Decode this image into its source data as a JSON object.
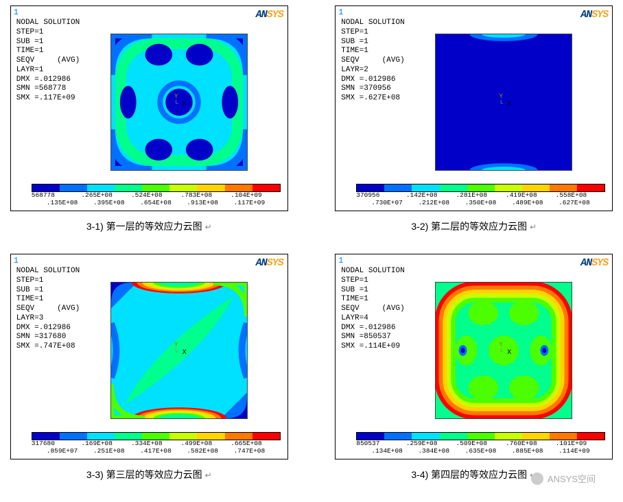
{
  "contour_colors": [
    "#0000c8",
    "#0070ff",
    "#00e0ff",
    "#00ff8c",
    "#4cff00",
    "#c8ff00",
    "#ffd400",
    "#ff7800",
    "#ff0000"
  ],
  "panels": [
    {
      "id": "p1",
      "corner": "1",
      "title": "NODAL SOLUTION",
      "lines": [
        "STEP=1",
        "SUB =1",
        "TIME=1",
        "SEQV     (AVG)",
        "LAYR=1",
        "DMX =.012986",
        "SMN =568778",
        "SMX =.117E+09"
      ],
      "legend_top": [
        "568778",
        ".265E+08",
        ".524E+08",
        ".783E+08",
        ".104E+09"
      ],
      "legend_bot": [
        ".135E+08",
        ".395E+08",
        ".654E+08",
        ".913E+08",
        ".117E+09"
      ],
      "caption": "3-1)  第一层的等效应力云图",
      "plot": 1
    },
    {
      "id": "p2",
      "corner": "1",
      "title": "NODAL SOLUTION",
      "lines": [
        "STEP=1",
        "SUB =1",
        "TIME=1",
        "SEQV     (AVG)",
        "LAYR=2",
        "DMX =.012986",
        "SMN =370956",
        "SMX =.627E+08"
      ],
      "legend_top": [
        "370956",
        ".142E+08",
        ".281E+08",
        ".419E+08",
        ".558E+08"
      ],
      "legend_bot": [
        ".730E+07",
        ".212E+08",
        ".350E+08",
        ".489E+08",
        ".627E+08"
      ],
      "caption": "3-2)  第二层的等效应力云图",
      "plot": 2
    },
    {
      "id": "p3",
      "corner": "1",
      "title": "NODAL SOLUTION",
      "lines": [
        "STEP=1",
        "SUB =1",
        "TIME=1",
        "SEQV     (AVG)",
        "LAYR=3",
        "DMX =.012986",
        "SMN =317680",
        "SMX =.747E+08"
      ],
      "legend_top": [
        "317680",
        ".169E+08",
        ".334E+08",
        ".499E+08",
        ".665E+08"
      ],
      "legend_bot": [
        ".859E+07",
        ".251E+08",
        ".417E+08",
        ".582E+08",
        ".747E+08"
      ],
      "caption": "3-3)  第三层的等效应力云图",
      "plot": 3
    },
    {
      "id": "p4",
      "corner": "1",
      "title": "NODAL SOLUTION",
      "lines": [
        "STEP=1",
        "SUB =1",
        "TIME=1",
        "SEQV     (AVG)",
        "LAYR=4",
        "DMX =.012986",
        "SMN =850537",
        "SMX =.114E+09"
      ],
      "legend_top": [
        "850537",
        ".259E+08",
        ".509E+08",
        ".760E+08",
        ".101E+09"
      ],
      "legend_bot": [
        ".134E+08",
        ".384E+08",
        ".635E+08",
        ".885E+08",
        ".114E+09"
      ],
      "caption": "3-4)  第四层的等效应力云图",
      "plot": 4
    }
  ],
  "coord_label_y": "Y",
  "coord_label_x": "X",
  "watermark": "ANSYS空间",
  "logo_an": "AN",
  "logo_sys": "SYS"
}
